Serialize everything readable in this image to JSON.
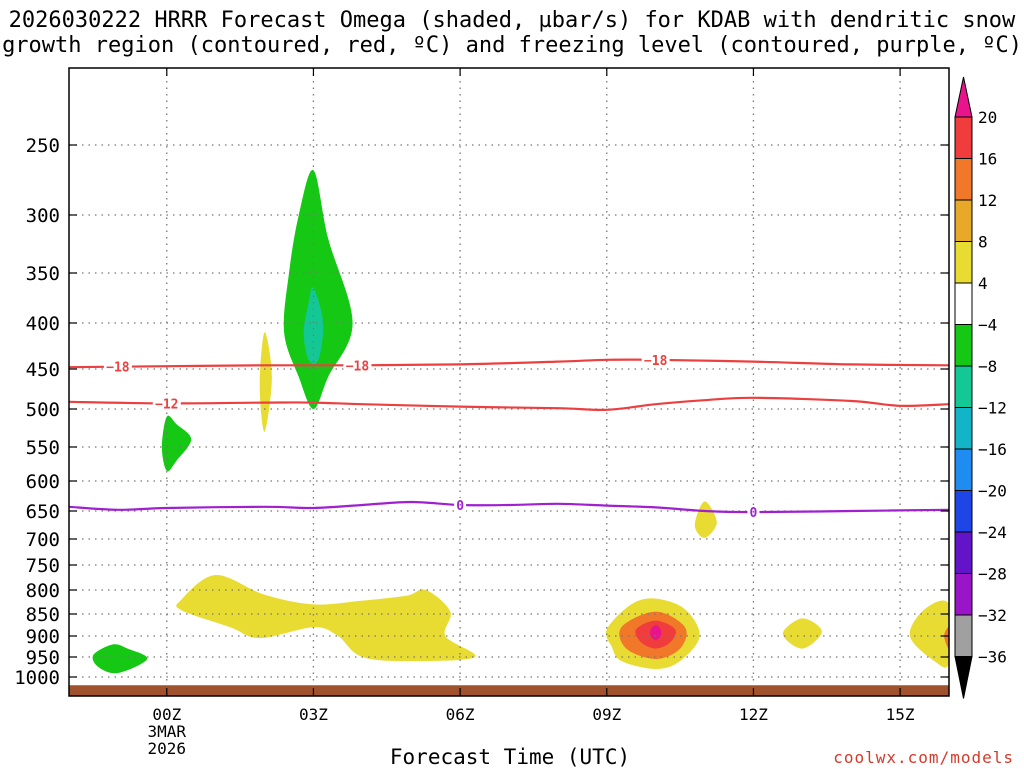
{
  "title_line1": "2026030222 HRRR Forecast Omega (shaded, µbar/s) for KDAB with dendritic snow",
  "title_line2": "growth region (contoured, red, ºC) and freezing level (contoured, purple, ºC)",
  "xlabel": "Forecast Time (UTC)",
  "credit": "coolwx.com/models",
  "colors": {
    "temp_contour": "#ec4040",
    "freezing_contour": "#a020d0",
    "ground": "#a0522d",
    "grid": "#777777"
  },
  "chart_data": {
    "type": "heatmap",
    "station": "KDAB",
    "x_units": "forecast hour UTC",
    "x_ticks": [
      {
        "label": "00Z",
        "sub": [
          "3MAR",
          "2026"
        ],
        "hour": 0
      },
      {
        "label": "03Z",
        "hour": 3
      },
      {
        "label": "06Z",
        "hour": 6
      },
      {
        "label": "09Z",
        "hour": 9
      },
      {
        "label": "12Z",
        "hour": 12
      },
      {
        "label": "15Z",
        "hour": 15
      }
    ],
    "xlim": [
      -2,
      16
    ],
    "y_axis": "pressure (mb), inverted",
    "y_ticks": [
      250,
      300,
      350,
      400,
      450,
      500,
      550,
      600,
      650,
      700,
      750,
      800,
      850,
      900,
      950,
      1000
    ],
    "ylim": [
      200,
      1030
    ],
    "colorbar": {
      "levels": [
        20,
        16,
        12,
        8,
        4,
        -4,
        -8,
        -12,
        -16,
        -20,
        -24,
        -28,
        -32,
        -36
      ],
      "label_values": [
        "20",
        "16",
        "12",
        "8",
        "4",
        "−4",
        "−8",
        "−12",
        "−16",
        "−20",
        "−24",
        "−28",
        "−32",
        "−36"
      ],
      "colors": [
        "#e8148c",
        "#f03c3c",
        "#f07828",
        "#e8a828",
        "#e8dc32",
        "#ffffff",
        "#14c814",
        "#14c896",
        "#14b4c8",
        "#1e8cf0",
        "#1e46e6",
        "#6414c8",
        "#9a14c8",
        "#a0a0a0",
        "#000000"
      ]
    },
    "contours": [
      {
        "name": "-18",
        "label": "−18",
        "color": "#ec4040",
        "points": [
          [
            -2,
            448
          ],
          [
            0,
            447
          ],
          [
            2,
            446
          ],
          [
            4,
            446
          ],
          [
            6,
            445
          ],
          [
            8,
            442
          ],
          [
            9,
            440
          ],
          [
            10,
            440
          ],
          [
            12,
            442
          ],
          [
            14,
            445
          ],
          [
            16,
            446
          ]
        ],
        "label_hours": [
          -1,
          3.9,
          10
        ]
      },
      {
        "name": "-12",
        "label": "−12",
        "color": "#ec4040",
        "points": [
          [
            -2,
            491
          ],
          [
            0,
            493
          ],
          [
            2,
            492
          ],
          [
            3,
            492
          ],
          [
            4,
            494
          ],
          [
            6,
            497
          ],
          [
            8,
            499
          ],
          [
            9,
            501
          ],
          [
            10,
            494
          ],
          [
            11,
            489
          ],
          [
            12,
            486
          ],
          [
            14,
            490
          ],
          [
            15,
            496
          ],
          [
            16,
            494
          ]
        ],
        "label_hours": [
          0
        ]
      },
      {
        "name": "0",
        "label": "0",
        "color": "#a020d0",
        "points": [
          [
            -2,
            643
          ],
          [
            -1,
            648
          ],
          [
            0,
            645
          ],
          [
            2,
            643
          ],
          [
            3,
            645
          ],
          [
            4,
            640
          ],
          [
            5,
            635
          ],
          [
            6,
            640
          ],
          [
            7,
            640
          ],
          [
            8,
            638
          ],
          [
            9,
            641
          ],
          [
            10,
            644
          ],
          [
            11,
            650
          ],
          [
            12,
            652
          ],
          [
            14,
            650
          ],
          [
            16,
            648
          ]
        ],
        "label_hours": [
          6,
          12
        ]
      }
    ],
    "omega_areas": [
      {
        "name": "green-400mb-3z",
        "value": -6,
        "color": "#14c814",
        "points": [
          [
            3,
            268
          ],
          [
            3.3,
            320
          ],
          [
            3.8,
            400
          ],
          [
            3.3,
            460
          ],
          [
            3,
            500
          ],
          [
            2.7,
            460
          ],
          [
            2.4,
            410
          ],
          [
            2.5,
            350
          ],
          [
            2.7,
            300
          ]
        ]
      },
      {
        "name": "teal-400mb-3z",
        "value": -10,
        "color": "#14c896",
        "points": [
          [
            3,
            365
          ],
          [
            3.2,
            400
          ],
          [
            3.1,
            440
          ],
          [
            2.9,
            440
          ],
          [
            2.8,
            410
          ],
          [
            2.9,
            380
          ]
        ]
      },
      {
        "name": "green-520mb-0z",
        "value": -6,
        "color": "#14c814",
        "points": [
          [
            0,
            510
          ],
          [
            0.2,
            520
          ],
          [
            0.5,
            540
          ],
          [
            0.2,
            570
          ],
          [
            0,
            585
          ],
          [
            -0.1,
            550
          ]
        ]
      },
      {
        "name": "yellow-480mb-2z",
        "value": 5,
        "color": "#e8dc32",
        "points": [
          [
            2,
            410
          ],
          [
            2.15,
            460
          ],
          [
            2,
            530
          ],
          [
            1.9,
            470
          ]
        ]
      },
      {
        "name": "green-960mb-1z",
        "value": -6,
        "color": "#14c814",
        "points": [
          [
            -1.5,
            945
          ],
          [
            -1.1,
            920
          ],
          [
            -0.8,
            930
          ],
          [
            -0.4,
            955
          ],
          [
            -1,
            990
          ],
          [
            -1.4,
            975
          ]
        ]
      },
      {
        "name": "yellow-850mb-band",
        "value": 5,
        "color": "#e8dc32",
        "points": [
          [
            0.3,
            820
          ],
          [
            1,
            770
          ],
          [
            2,
            810
          ],
          [
            3,
            830
          ],
          [
            4,
            822
          ],
          [
            4.9,
            812
          ],
          [
            5.3,
            800
          ],
          [
            5.8,
            845
          ],
          [
            5.7,
            900
          ],
          [
            6.3,
            950
          ],
          [
            5,
            960
          ],
          [
            4,
            950
          ],
          [
            3.5,
            900
          ],
          [
            3,
            880
          ],
          [
            1.9,
            905
          ],
          [
            1.3,
            880
          ],
          [
            0.3,
            842
          ]
        ]
      },
      {
        "name": "yellow-880mb-10z",
        "value": 6,
        "color": "#e8dc32",
        "points": [
          [
            9,
            885
          ],
          [
            9.5,
            830
          ],
          [
            10,
            818
          ],
          [
            10.6,
            840
          ],
          [
            10.9,
            900
          ],
          [
            10.5,
            960
          ],
          [
            10,
            980
          ],
          [
            9.3,
            960
          ],
          [
            9.1,
            925
          ]
        ]
      },
      {
        "name": "orange-880mb-10z",
        "value": 12,
        "color": "#f07828",
        "points": [
          [
            9.3,
            880
          ],
          [
            10,
            845
          ],
          [
            10.6,
            880
          ],
          [
            10.5,
            930
          ],
          [
            10,
            955
          ],
          [
            9.4,
            930
          ]
        ]
      },
      {
        "name": "red-880mb-10z",
        "value": 16,
        "color": "#f03c3c",
        "points": [
          [
            9.6,
            885
          ],
          [
            10,
            865
          ],
          [
            10.4,
            885
          ],
          [
            10.3,
            915
          ],
          [
            10,
            930
          ],
          [
            9.7,
            915
          ]
        ]
      },
      {
        "name": "magenta-880mb-10z",
        "value": 20,
        "color": "#e8148c",
        "points": [
          [
            9.9,
            885
          ],
          [
            10,
            875
          ],
          [
            10.1,
            885
          ],
          [
            10.1,
            900
          ],
          [
            10,
            910
          ],
          [
            9.9,
            900
          ]
        ]
      },
      {
        "name": "yellow-680mb-11z",
        "value": 5,
        "color": "#e8dc32",
        "points": [
          [
            11,
            634
          ],
          [
            11.25,
            670
          ],
          [
            11,
            698
          ],
          [
            10.8,
            675
          ]
        ]
      },
      {
        "name": "yellow-890mb-13z",
        "value": 5,
        "color": "#e8dc32",
        "points": [
          [
            13,
            860
          ],
          [
            13.4,
            890
          ],
          [
            13,
            930
          ],
          [
            12.6,
            895
          ]
        ]
      },
      {
        "name": "yellow-900mb-16z",
        "value": 5,
        "color": "#e8dc32",
        "points": [
          [
            16,
            830
          ],
          [
            15.5,
            840
          ],
          [
            15.2,
            900
          ],
          [
            15.7,
            960
          ],
          [
            16,
            965
          ]
        ]
      },
      {
        "name": "orange-900mb-16z",
        "value": 10,
        "color": "#f07828",
        "points": [
          [
            16,
            880
          ],
          [
            15.9,
            900
          ],
          [
            16,
            930
          ]
        ]
      }
    ],
    "ground": {
      "color": "#a0522d",
      "top_mb": 1013
    }
  }
}
